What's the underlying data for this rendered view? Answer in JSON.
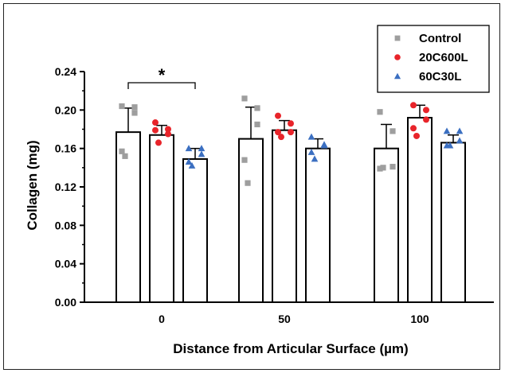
{
  "chart_data": {
    "type": "bar",
    "title": "",
    "xlabel": "Distance from Articular Surface (µm)",
    "ylabel": "Collagen (mg)",
    "ylim": [
      0,
      0.24
    ],
    "y_ticks": [
      "0.00",
      "0.04",
      "0.08",
      "0.12",
      "0.16",
      "0.20",
      "0.24"
    ],
    "categories": [
      "0",
      "50",
      "100"
    ],
    "legend_position": "top-right",
    "grid": false,
    "series": [
      {
        "name": "Control",
        "color": "#9e9e9e",
        "marker": "square",
        "values": [
          0.177,
          0.17,
          0.16
        ],
        "errors": [
          0.025,
          0.033,
          0.025
        ],
        "points": [
          [
            0.204,
            0.197,
            0.203,
            0.157,
            0.152
          ],
          [
            0.212,
            0.202,
            0.185,
            0.148,
            0.124
          ],
          [
            0.198,
            0.178,
            0.141,
            0.139,
            0.14
          ]
        ]
      },
      {
        "name": "20C600L",
        "color": "#e8242a",
        "marker": "circle",
        "values": [
          0.174,
          0.179,
          0.192
        ],
        "errors": [
          0.01,
          0.01,
          0.013
        ],
        "points": [
          [
            0.187,
            0.18,
            0.175,
            0.179,
            0.166
          ],
          [
            0.194,
            0.186,
            0.177,
            0.177,
            0.172
          ],
          [
            0.205,
            0.2,
            0.19,
            0.181,
            0.173
          ]
        ]
      },
      {
        "name": "60C30L",
        "color": "#3b6fc1",
        "marker": "triangle",
        "values": [
          0.149,
          0.16,
          0.166
        ],
        "errors": [
          0.011,
          0.01,
          0.008
        ],
        "points": [
          [
            0.16,
            0.16,
            0.154,
            0.146,
            0.142
          ],
          [
            0.172,
            0.164,
            0.163,
            0.156,
            0.149
          ],
          [
            0.178,
            0.178,
            0.168,
            0.163,
            0.163
          ]
        ]
      }
    ],
    "annotations": [
      {
        "text": "*",
        "type": "significance-bracket",
        "category": "0",
        "from_series": 0,
        "to_series": 2
      }
    ]
  }
}
